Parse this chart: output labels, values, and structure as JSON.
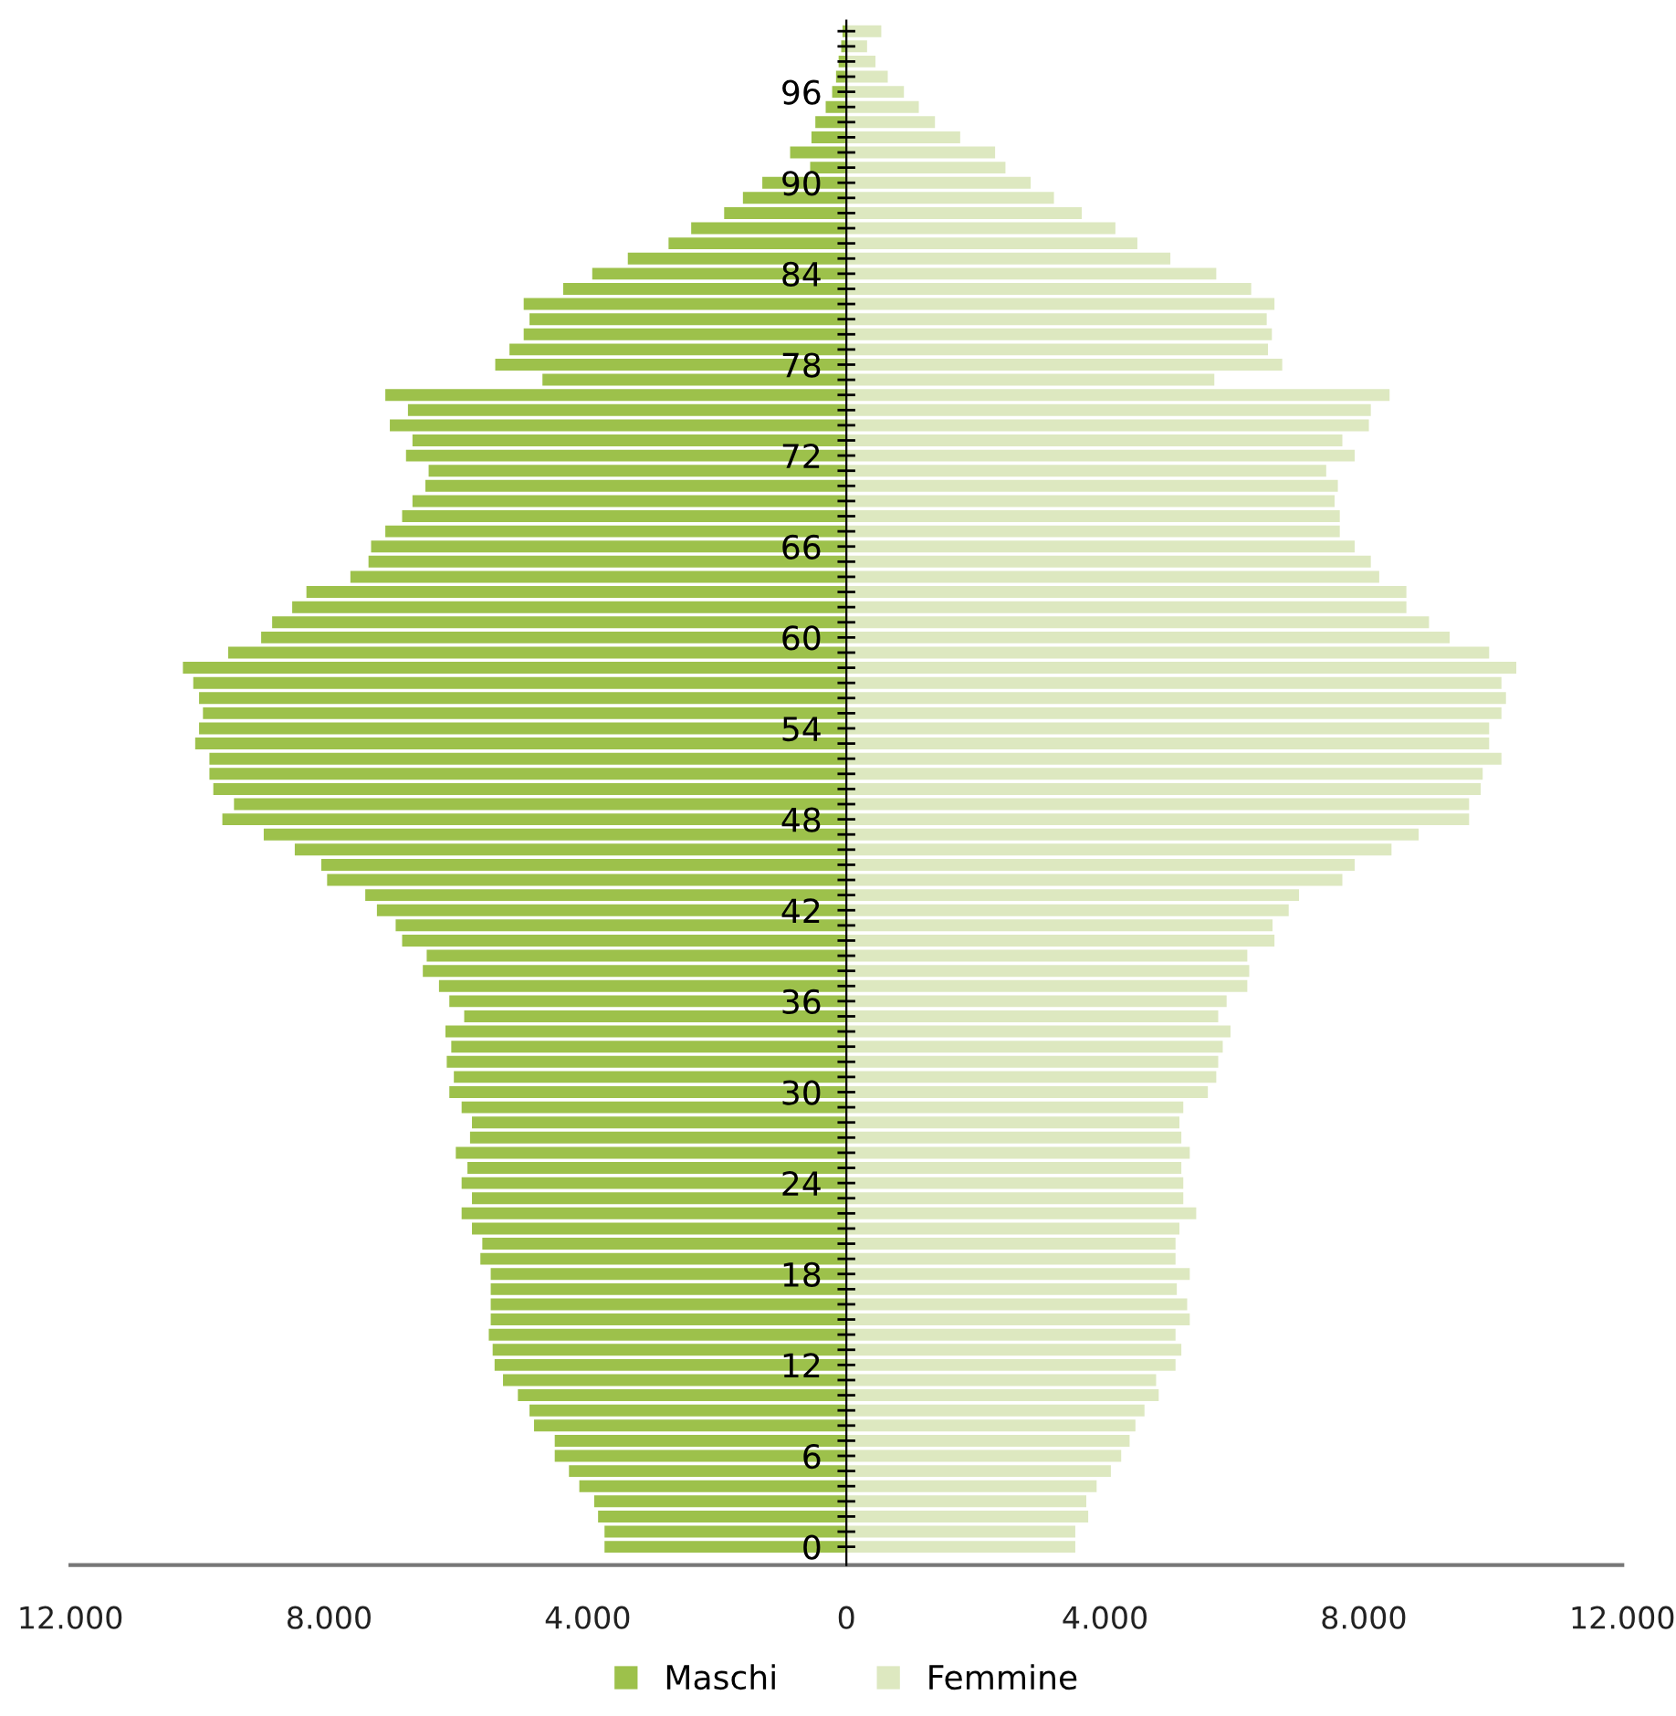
{
  "chart_data": {
    "type": "bar",
    "orientation": "horizontal",
    "stacked": true,
    "categories": [
      null,
      null,
      null,
      null,
      "96",
      null,
      null,
      null,
      null,
      null,
      "90",
      null,
      null,
      null,
      null,
      null,
      "84",
      null,
      null,
      null,
      null,
      null,
      "78",
      null,
      null,
      null,
      null,
      null,
      "72",
      null,
      null,
      null,
      null,
      null,
      "66",
      null,
      null,
      null,
      null,
      null,
      "60",
      null,
      null,
      null,
      null,
      null,
      "54",
      null,
      null,
      null,
      null,
      null,
      "48",
      null,
      null,
      null,
      null,
      null,
      "42",
      null,
      null,
      null,
      null,
      null,
      "36",
      null,
      null,
      null,
      null,
      null,
      "30",
      null,
      null,
      null,
      null,
      null,
      "24",
      null,
      null,
      null,
      null,
      null,
      "18",
      null,
      null,
      null,
      null,
      null,
      "12",
      null,
      null,
      null,
      null,
      null,
      "6",
      null,
      null,
      null,
      null,
      null,
      "0"
    ],
    "series": [
      {
        "name": "Maschi",
        "color": "#9dc14b",
        "values": [
          -60,
          -80,
          -120,
          -160,
          -220,
          -320,
          -480,
          -540,
          -870,
          -560,
          -1300,
          -1600,
          -1890,
          -2400,
          -2750,
          -3380,
          -3930,
          -4380,
          -4990,
          -4900,
          -4990,
          -5210,
          -5430,
          -4700,
          -7130,
          -6780,
          -7060,
          -6710,
          -6810,
          -6460,
          -6510,
          -6710,
          -6870,
          -7130,
          -7350,
          -7390,
          -7670,
          -8350,
          -8570,
          -8880,
          -9050,
          -9560,
          -10260,
          -10100,
          -10010,
          -9950,
          -10010,
          -10070,
          -9850,
          -9850,
          -9790,
          -9470,
          -9650,
          -9010,
          -8530,
          -8120,
          -8030,
          -7440,
          -7260,
          -6970,
          -6870,
          -6490,
          -6550,
          -6300,
          -6140,
          -5910,
          -6200,
          -6110,
          -6180,
          -6070,
          -6140,
          -5950,
          -5790,
          -5820,
          -6040,
          -5860,
          -5950,
          -5790,
          -5950,
          -5790,
          -5630,
          -5660,
          -5500,
          -5500,
          -5500,
          -5500,
          -5530,
          -5470,
          -5440,
          -5310,
          -5080,
          -4900,
          -4830,
          -4510,
          -4510,
          -4290,
          -4130,
          -3900,
          -3840,
          -3740,
          -3740
        ]
      },
      {
        "name": "Femmine",
        "color": "#dde8c0",
        "values": [
          540,
          320,
          450,
          640,
          890,
          1120,
          1370,
          1760,
          2300,
          2460,
          2850,
          3210,
          3640,
          4160,
          4500,
          5010,
          5720,
          6260,
          6620,
          6500,
          6580,
          6520,
          6740,
          5690,
          8400,
          8110,
          8080,
          7670,
          7860,
          7420,
          7600,
          7550,
          7630,
          7630,
          7860,
          8110,
          8240,
          8660,
          8660,
          9010,
          9330,
          9940,
          10360,
          10130,
          10200,
          10130,
          9940,
          9940,
          10130,
          9840,
          9810,
          9630,
          9630,
          8850,
          8430,
          7860,
          7670,
          7000,
          6840,
          6590,
          6620,
          6200,
          6230,
          6200,
          5880,
          5750,
          5940,
          5820,
          5750,
          5720,
          5590,
          5210,
          5150,
          5180,
          5310,
          5180,
          5210,
          5210,
          5410,
          5150,
          5090,
          5090,
          5310,
          5110,
          5270,
          5310,
          5090,
          5180,
          5090,
          4790,
          4830,
          4610,
          4470,
          4380,
          4250,
          4090,
          3870,
          3710,
          3740,
          3540,
          3540
        ]
      }
    ],
    "xlim": [
      -12000,
      12000
    ],
    "xticks": [
      {
        "value": -12000,
        "label": "12.000"
      },
      {
        "value": -8000,
        "label": "8.000"
      },
      {
        "value": -4000,
        "label": "4.000"
      },
      0,
      {
        "value": 4000,
        "label": "4.000"
      },
      {
        "value": 8000,
        "label": "8.000"
      },
      {
        "value": 12000,
        "label": "12.000"
      }
    ],
    "grid": false,
    "legend": "bottom"
  }
}
